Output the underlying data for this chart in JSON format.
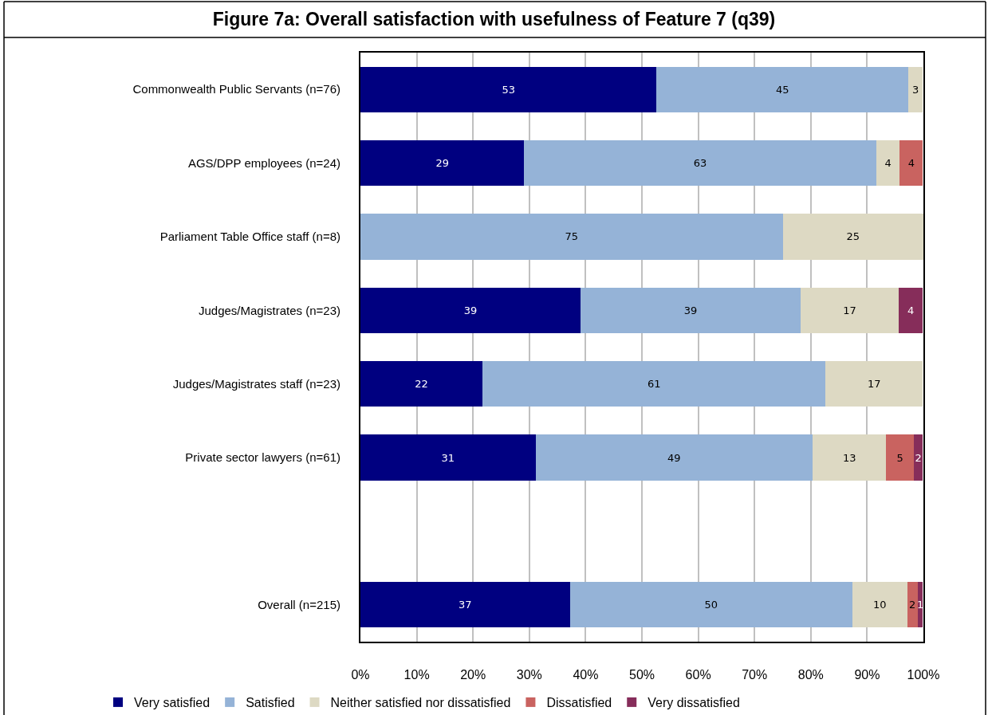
{
  "chart_data": {
    "type": "bar",
    "orientation": "horizontal",
    "stacked": true,
    "title": "Figure 7a: Overall satisfaction with usefulness of Feature 7 (q39)",
    "categories": [
      "Commonwealth Public Servants (n=76)",
      "AGS/DPP employees (n=24)",
      "Parliament Table Office staff (n=8)",
      "Judges/Magistrates (n=23)",
      "Judges/Magistrates staff (n=23)",
      "Private sector lawyers (n=61)",
      null,
      "Overall (n=215)"
    ],
    "series": [
      {
        "name": "Very satisfied",
        "color": "#000080",
        "values": [
          52.6,
          29.1,
          null,
          39.1,
          21.7,
          31.1,
          null,
          37.2
        ],
        "value_labels": [
          "53",
          "29",
          null,
          "39",
          "22",
          "31",
          null,
          "37"
        ]
      },
      {
        "name": "Satisfied",
        "color": "#95b3d7",
        "values": [
          44.7,
          62.5,
          75,
          39.1,
          60.9,
          49.2,
          null,
          50.2
        ],
        "value_labels": [
          "45",
          "63",
          "75",
          "39",
          "61",
          "49",
          null,
          "50"
        ]
      },
      {
        "name": "Neither satisfied nor dissatisfied",
        "color": "#ddd9c3",
        "values": [
          2.6,
          4.2,
          25,
          17.4,
          17.3,
          13.1,
          null,
          9.7
        ],
        "value_labels": [
          "3",
          "4",
          "25",
          "17",
          "17",
          "13",
          null,
          "10"
        ]
      },
      {
        "name": "Dissatisfied",
        "color": "#c96360",
        "values": [
          null,
          4.1,
          null,
          null,
          null,
          4.9,
          null,
          1.9
        ],
        "value_labels": [
          null,
          "4",
          null,
          null,
          null,
          "5",
          null,
          "2"
        ]
      },
      {
        "name": "Very dissatisfied",
        "color": "#862d5a",
        "values": [
          null,
          null,
          null,
          4.3,
          null,
          1.6,
          null,
          0.9
        ],
        "value_labels": [
          null,
          null,
          null,
          "4",
          null,
          "2",
          null,
          "1"
        ]
      }
    ],
    "xlim": [
      0,
      100
    ],
    "xticks": [
      {
        "value": 0,
        "label": "0%"
      },
      {
        "value": 10,
        "label": "10%"
      },
      {
        "value": 20,
        "label": "20%"
      },
      {
        "value": 30,
        "label": "30%"
      },
      {
        "value": 40,
        "label": "40%"
      },
      {
        "value": 50,
        "label": "50%"
      },
      {
        "value": 60,
        "label": "60%"
      },
      {
        "value": 70,
        "label": "70%"
      },
      {
        "value": 80,
        "label": "80%"
      },
      {
        "value": 90,
        "label": "90%"
      },
      {
        "value": 100,
        "label": "100%"
      }
    ],
    "grid": "x",
    "legend": "bottom"
  }
}
